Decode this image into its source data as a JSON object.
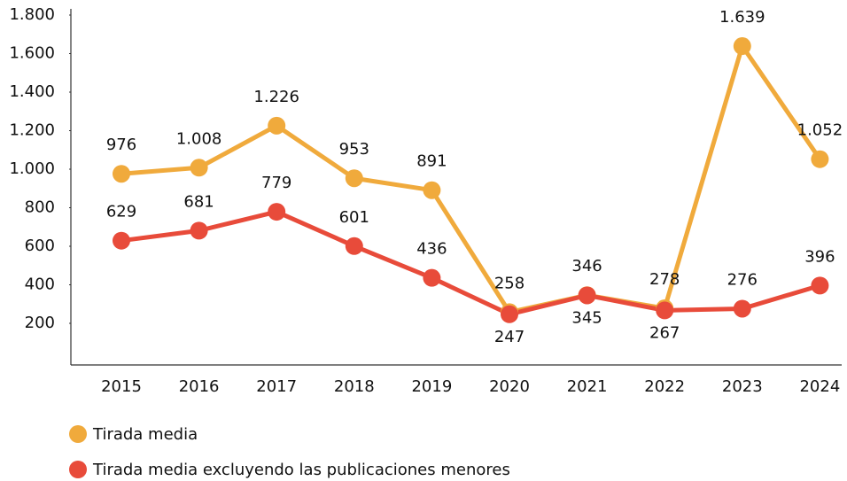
{
  "chart_data": {
    "type": "line",
    "categories": [
      "2015",
      "2016",
      "2017",
      "2018",
      "2019",
      "2020",
      "2021",
      "2022",
      "2023",
      "2024"
    ],
    "series": [
      {
        "name": "Tirada media",
        "color": "#f0aa3c",
        "values": [
          976,
          1008,
          1226,
          953,
          891,
          258,
          346,
          278,
          1639,
          1052
        ],
        "value_labels": [
          "976",
          "1.008",
          "1.226",
          "953",
          "891",
          "258",
          "346",
          "278",
          "1.639",
          "1.052"
        ]
      },
      {
        "name": "Tirada media excluyendo las publicaciones menores",
        "color": "#e84b3a",
        "values": [
          629,
          681,
          779,
          601,
          436,
          247,
          345,
          267,
          276,
          396
        ]
      }
    ],
    "ylim": [
      0,
      1800
    ],
    "yticks": [
      200,
      400,
      600,
      800,
      {
        "value": 1000,
        "label": "1.000"
      },
      {
        "value": 1200,
        "label": "1.200"
      },
      {
        "value": 1400,
        "label": "1.400"
      },
      {
        "value": 1600,
        "label": "1.600"
      },
      {
        "value": 1800,
        "label": "1.800"
      }
    ],
    "grid": false
  }
}
